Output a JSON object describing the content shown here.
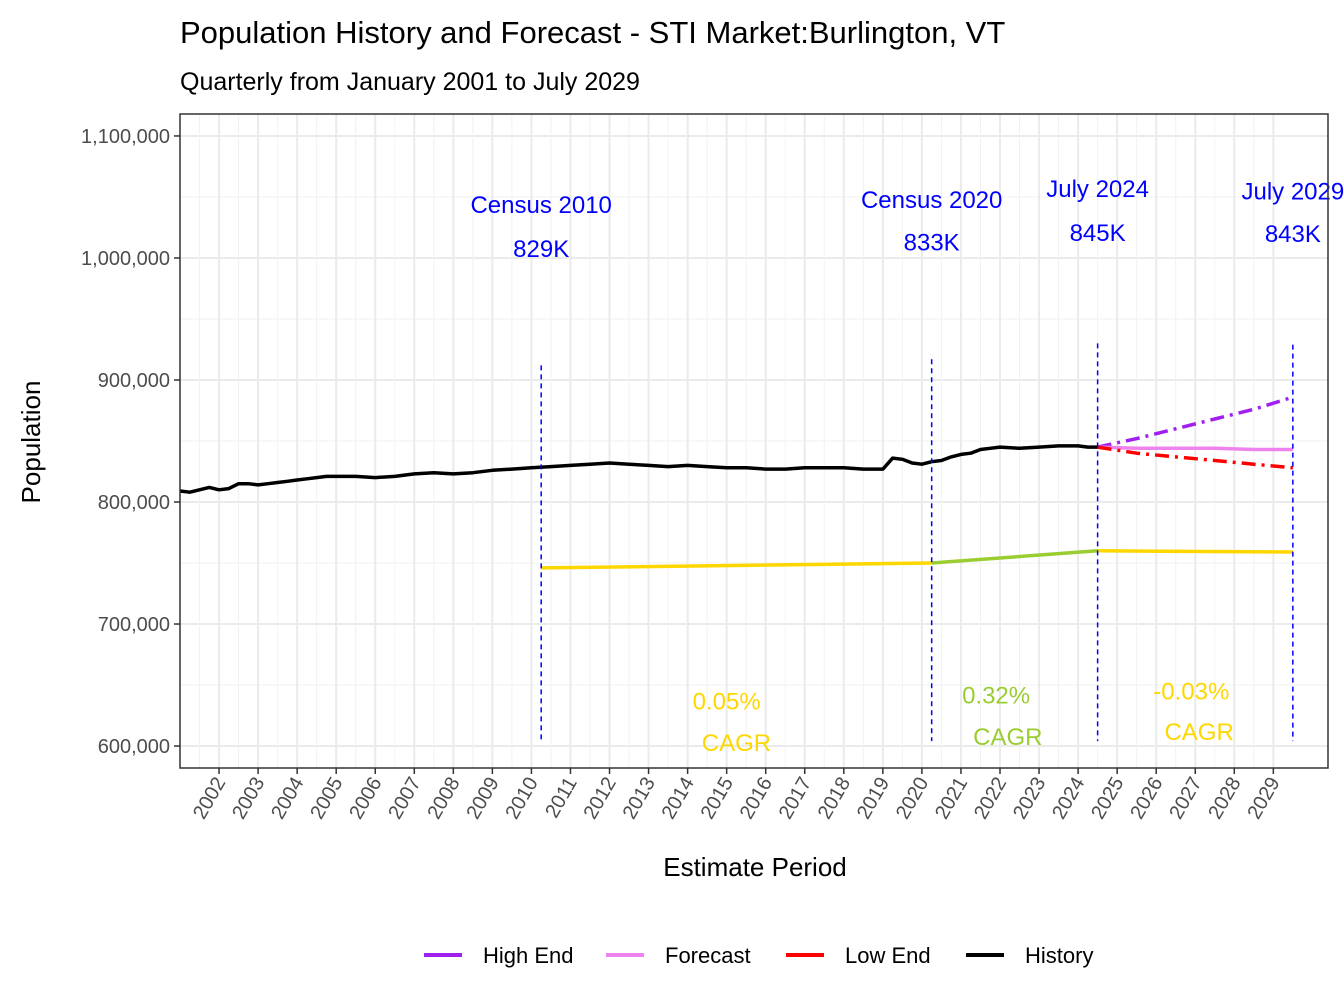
{
  "chart_data": {
    "type": "line",
    "title": "Population History and Forecast - STI Market:Burlington, VT",
    "subtitle": "Quarterly from January 2001 to July 2029",
    "xlabel": "Estimate Period",
    "ylabel": "Population",
    "xlim": [
      2001.0,
      2030.4
    ],
    "ylim": [
      582000,
      1118000
    ],
    "x_ticks": [
      "2002",
      "2003",
      "2004",
      "2005",
      "2006",
      "2007",
      "2008",
      "2009",
      "2010",
      "2011",
      "2012",
      "2013",
      "2014",
      "2015",
      "2016",
      "2017",
      "2018",
      "2019",
      "2020",
      "2021",
      "2022",
      "2023",
      "2024",
      "2025",
      "2026",
      "2027",
      "2028",
      "2029"
    ],
    "y_ticks": [
      {
        "value": 600000,
        "label": "600,000"
      },
      {
        "value": 700000,
        "label": "700,000"
      },
      {
        "value": 800000,
        "label": "800,000"
      },
      {
        "value": 900000,
        "label": "900,000"
      },
      {
        "value": 1000000,
        "label": "1,000,000"
      },
      {
        "value": 1100000,
        "label": "1,100,000"
      }
    ],
    "series": [
      {
        "name": "History",
        "color": "#000000",
        "dash": "solid",
        "x": [
          2001.0,
          2001.25,
          2001.5,
          2001.75,
          2002.0,
          2002.25,
          2002.5,
          2002.75,
          2003.0,
          2003.25,
          2003.5,
          2003.75,
          2004.0,
          2004.25,
          2004.5,
          2004.75,
          2005.0,
          2005.5,
          2006.0,
          2006.5,
          2007.0,
          2007.5,
          2008.0,
          2008.5,
          2009.0,
          2009.5,
          2010.0,
          2010.5,
          2011.0,
          2011.5,
          2012.0,
          2012.5,
          2013.0,
          2013.5,
          2014.0,
          2014.5,
          2015.0,
          2015.5,
          2016.0,
          2016.5,
          2017.0,
          2017.5,
          2018.0,
          2018.5,
          2019.0,
          2019.25,
          2019.5,
          2019.75,
          2020.0,
          2020.25,
          2020.5,
          2020.75,
          2021.0,
          2021.25,
          2021.5,
          2021.75,
          2022.0,
          2022.5,
          2023.0,
          2023.5,
          2024.0,
          2024.25,
          2024.5
        ],
        "values": [
          809000,
          808000,
          810000,
          812000,
          810000,
          811000,
          815000,
          815000,
          814000,
          815000,
          816000,
          817000,
          818000,
          819000,
          820000,
          821000,
          821000,
          821000,
          820000,
          821000,
          823000,
          824000,
          823000,
          824000,
          826000,
          827000,
          828000,
          829000,
          830000,
          831000,
          832000,
          831000,
          830000,
          829000,
          830000,
          829000,
          828000,
          828000,
          827000,
          827000,
          828000,
          828000,
          828000,
          827000,
          827000,
          836000,
          835000,
          832000,
          831000,
          833000,
          834000,
          837000,
          839000,
          840000,
          843000,
          844000,
          845000,
          844000,
          845000,
          846000,
          846000,
          845000,
          845000
        ]
      },
      {
        "name": "High End",
        "color": "#a020f0",
        "dash": "dashdot",
        "x": [
          2024.5,
          2025.5,
          2026.5,
          2027.5,
          2028.5,
          2029.5
        ],
        "values": [
          845000,
          852000,
          860000,
          868000,
          876000,
          886000
        ]
      },
      {
        "name": "Forecast",
        "color": "#ee82ee",
        "dash": "solid",
        "x": [
          2024.5,
          2025.5,
          2026.5,
          2027.5,
          2028.5,
          2029.5
        ],
        "values": [
          845000,
          844000,
          844000,
          844000,
          843000,
          843000
        ]
      },
      {
        "name": "Low End",
        "color": "#ff0000",
        "dash": "dashdot",
        "x": [
          2024.5,
          2025.5,
          2026.5,
          2027.5,
          2028.5,
          2029.5
        ],
        "values": [
          845000,
          840000,
          837000,
          834000,
          831000,
          828000
        ]
      },
      {
        "name": "Trend 2010-2020",
        "color": "#ffd700",
        "dash": "solid",
        "in_legend": false,
        "x": [
          2010.25,
          2020.25
        ],
        "values": [
          746000,
          750000
        ]
      },
      {
        "name": "Trend 2020-2024",
        "color": "#9acd32",
        "dash": "solid",
        "in_legend": false,
        "x": [
          2020.25,
          2024.5
        ],
        "values": [
          750000,
          760000
        ]
      },
      {
        "name": "Trend 2024-2029",
        "color": "#ffd700",
        "dash": "solid",
        "in_legend": false,
        "x": [
          2024.5,
          2029.5
        ],
        "values": [
          760000,
          759000
        ]
      }
    ],
    "vlines": [
      {
        "x": 2010.25,
        "y_top": 912000
      },
      {
        "x": 2020.25,
        "y_top": 917000
      },
      {
        "x": 2024.5,
        "y_top": 930000
      },
      {
        "x": 2029.5,
        "y_top": 929000
      }
    ],
    "annotations": [
      {
        "x": 2010.25,
        "y": 1037000,
        "text": "Census 2010",
        "color": "#0000ff"
      },
      {
        "x": 2010.25,
        "y": 1001000,
        "text": "829K",
        "color": "#0000ff"
      },
      {
        "x": 2020.25,
        "y": 1041000,
        "text": "Census 2020",
        "color": "#0000ff"
      },
      {
        "x": 2020.25,
        "y": 1006000,
        "text": "833K",
        "color": "#0000ff"
      },
      {
        "x": 2024.5,
        "y": 1050000,
        "text": "July 2024",
        "color": "#0000ff"
      },
      {
        "x": 2024.5,
        "y": 1014000,
        "text": "845K",
        "color": "#0000ff"
      },
      {
        "x": 2029.5,
        "y": 1048000,
        "text": "July 2029",
        "color": "#0000ff"
      },
      {
        "x": 2029.5,
        "y": 1013000,
        "text": "843K",
        "color": "#0000ff"
      },
      {
        "x": 2015.0,
        "y": 630000,
        "text": "0.05%",
        "color": "#ffd700"
      },
      {
        "x": 2015.25,
        "y": 596000,
        "text": "CAGR",
        "color": "#ffd700"
      },
      {
        "x": 2021.9,
        "y": 635000,
        "text": "0.32%",
        "color": "#9acd32"
      },
      {
        "x": 2022.2,
        "y": 601000,
        "text": "CAGR",
        "color": "#9acd32"
      },
      {
        "x": 2026.9,
        "y": 638000,
        "text": "-0.03%",
        "color": "#ffd700"
      },
      {
        "x": 2027.1,
        "y": 605000,
        "text": "CAGR",
        "color": "#ffd700"
      }
    ],
    "legend": {
      "position": "bottom",
      "entries": [
        {
          "name": "High End",
          "color": "#a020f0"
        },
        {
          "name": "Forecast",
          "color": "#ee82ee"
        },
        {
          "name": "Low End",
          "color": "#ff0000"
        },
        {
          "name": "History",
          "color": "#000000"
        }
      ]
    }
  }
}
